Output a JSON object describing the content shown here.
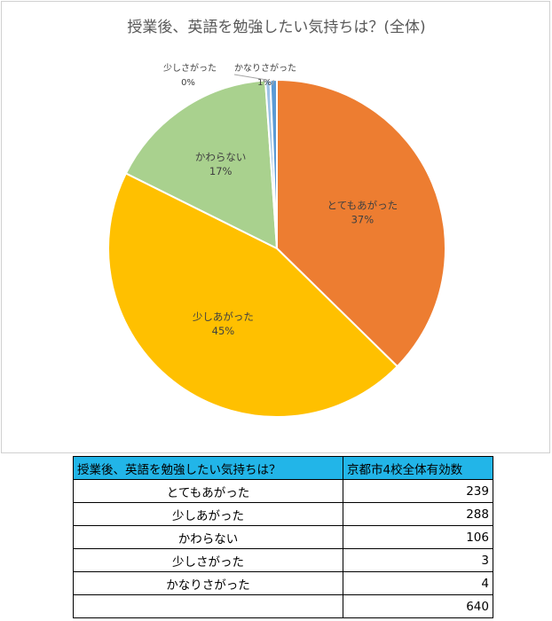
{
  "chart_data": {
    "type": "pie",
    "title": "授業後、英語を勉強したい気持ちは？(全体)",
    "slices": [
      {
        "label": "とてもあがった",
        "value": 239,
        "percent_label": "37%",
        "color": "#ED7D31"
      },
      {
        "label": "少しあがった",
        "value": 288,
        "percent_label": "45%",
        "color": "#FFC000"
      },
      {
        "label": "かわらない",
        "value": 106,
        "percent_label": "17%",
        "color": "#A9D18E"
      },
      {
        "label": "少しさがった",
        "value": 3,
        "percent_label": "0%",
        "color": "#9DC3E6"
      },
      {
        "label": "かなりさがった",
        "value": 4,
        "percent_label": "1%",
        "color": "#5B9BD5"
      }
    ]
  },
  "table": {
    "header": [
      "授業後、英語を勉強したい気持ちは？",
      "京都市4校全体有効数"
    ],
    "rows": [
      [
        "とてもあがった",
        "239"
      ],
      [
        "少しあがった",
        "288"
      ],
      [
        "かわらない",
        "106"
      ],
      [
        "少しさがった",
        "3"
      ],
      [
        "かなりさがった",
        "4"
      ]
    ],
    "total": "640"
  }
}
